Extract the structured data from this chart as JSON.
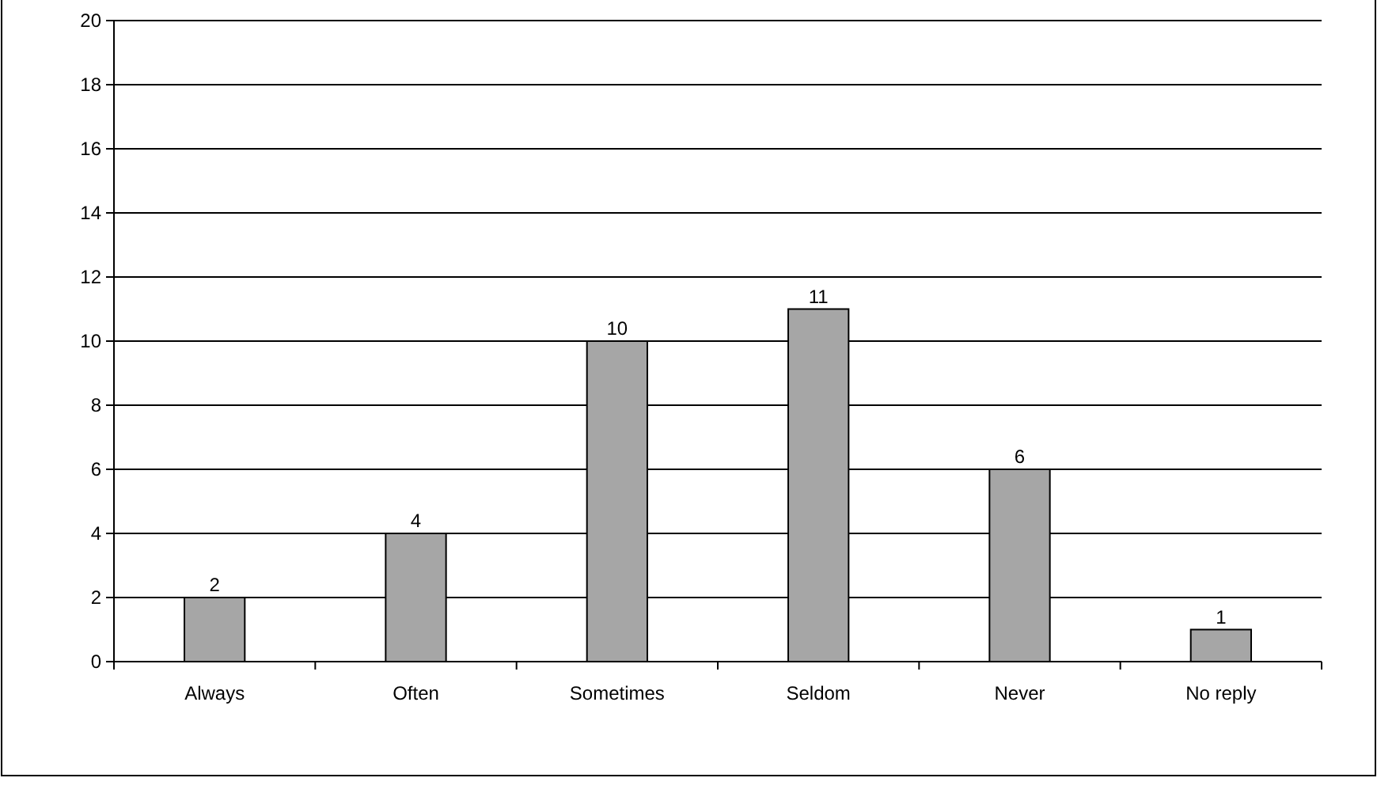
{
  "chart_data": {
    "type": "bar",
    "categories": [
      "Always",
      "Often",
      "Sometimes",
      "Seldom",
      "Never",
      "No reply"
    ],
    "values": [
      2,
      4,
      10,
      11,
      6,
      1
    ],
    "color": "#a6a6a6",
    "ylim": [
      0,
      20
    ],
    "yticks": [
      0,
      2,
      4,
      6,
      8,
      10,
      12,
      14,
      16,
      18,
      20
    ],
    "grid": "y",
    "data_labels": true
  }
}
